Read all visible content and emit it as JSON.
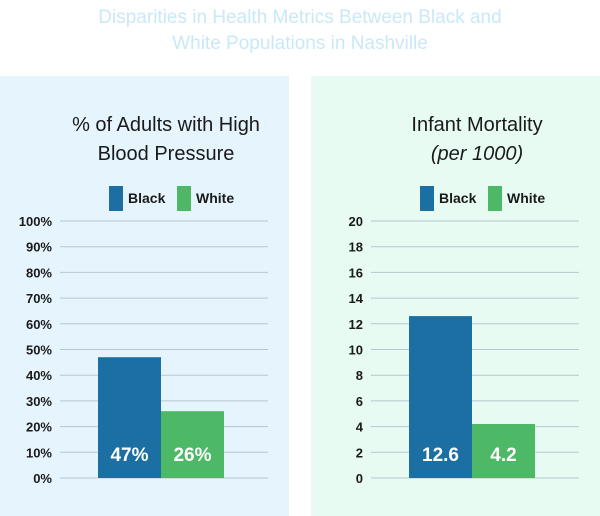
{
  "page": {
    "title_line1": "Disparities in Health Metrics Between Black and",
    "title_line2": "White Populations in Nashville"
  },
  "colors": {
    "black_series": "#1b6fa2",
    "white_series": "#4db866",
    "left_panel_bg": "#e5f4fd",
    "right_panel_bg": "#e7fbf3",
    "gridline": "#b9c6cf"
  },
  "chart_data": [
    {
      "type": "bar",
      "title_lines": [
        "% of Adults with High",
        "Blood Pressure"
      ],
      "subtitle": "",
      "legend": [
        "Black",
        "White"
      ],
      "categories": [
        "Black",
        "White"
      ],
      "values": [
        47,
        26
      ],
      "data_labels": [
        "47%",
        "26%"
      ],
      "ylim": [
        0,
        100
      ],
      "yticks": [
        0,
        10,
        20,
        30,
        40,
        50,
        60,
        70,
        80,
        90,
        100
      ],
      "ytick_labels": [
        "0%",
        "10%",
        "20%",
        "30%",
        "40%",
        "50%",
        "60%",
        "70%",
        "80%",
        "90%",
        "100%"
      ],
      "grid": true,
      "legend_position": "top"
    },
    {
      "type": "bar",
      "title_lines": [
        "Infant Mortality"
      ],
      "subtitle": "(per 1000)",
      "legend": [
        "Black",
        "White"
      ],
      "categories": [
        "Black",
        "White"
      ],
      "values": [
        12.6,
        4.2
      ],
      "data_labels": [
        "12.6",
        "4.2"
      ],
      "ylim": [
        0,
        20
      ],
      "yticks": [
        0,
        2,
        4,
        6,
        8,
        10,
        12,
        14,
        16,
        18,
        20
      ],
      "ytick_labels": [
        "0",
        "2",
        "4",
        "6",
        "8",
        "10",
        "12",
        "14",
        "16",
        "18",
        "20"
      ],
      "grid": true,
      "legend_position": "top"
    }
  ]
}
